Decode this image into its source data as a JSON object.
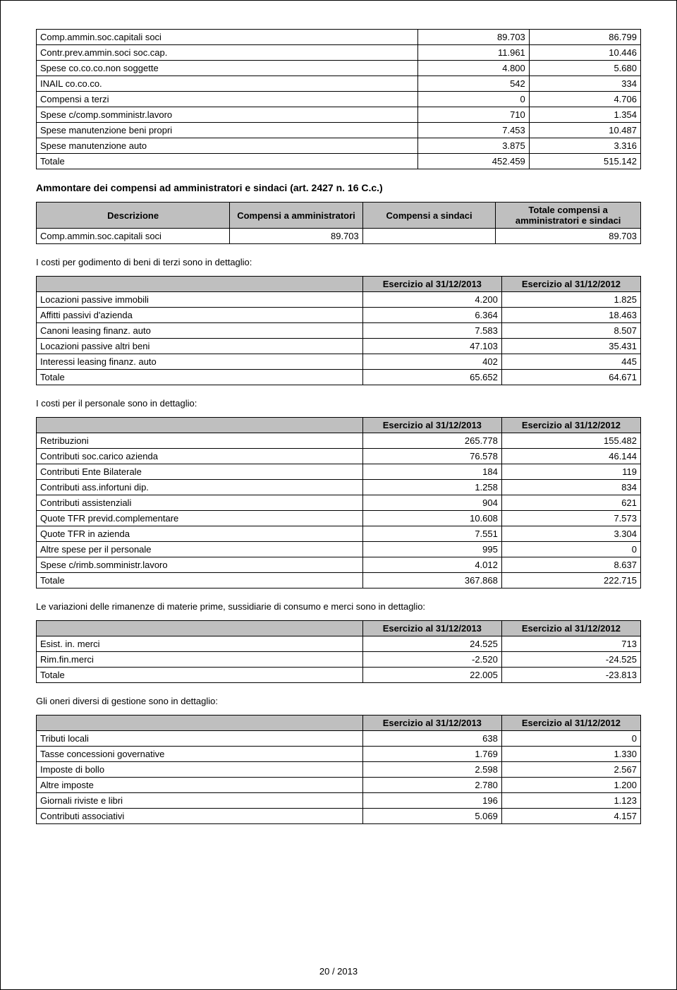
{
  "table1": {
    "rows": [
      {
        "label": "Comp.ammin.soc.capitali soci",
        "c1": "89.703",
        "c2": "86.799"
      },
      {
        "label": "Contr.prev.ammin.soci soc.cap.",
        "c1": "11.961",
        "c2": "10.446"
      },
      {
        "label": "Spese co.co.co.non soggette",
        "c1": "4.800",
        "c2": "5.680"
      },
      {
        "label": "INAIL co.co.co.",
        "c1": "542",
        "c2": "334"
      },
      {
        "label": "Compensi a terzi",
        "c1": "0",
        "c2": "4.706"
      },
      {
        "label": "Spese c/comp.somministr.lavoro",
        "c1": "710",
        "c2": "1.354"
      },
      {
        "label": "Spese manutenzione beni propri",
        "c1": "7.453",
        "c2": "10.487"
      },
      {
        "label": "Spese manutenzione auto",
        "c1": "3.875",
        "c2": "3.316"
      },
      {
        "label": "Totale",
        "c1": "452.459",
        "c2": "515.142"
      }
    ]
  },
  "heading1": "Ammontare dei compensi ad amministratori e sindaci (art. 2427 n. 16 C.c.)",
  "table2": {
    "headers": {
      "h1": "Descrizione",
      "h2": "Compensi a amministratori",
      "h3": "Compensi a sindaci",
      "h4": "Totale compensi a amministratori e sindaci"
    },
    "row": {
      "label": "Comp.ammin.soc.capitali soci",
      "c1": "89.703",
      "c2": "",
      "c3": "89.703"
    }
  },
  "subtext1": "I costi per godimento di beni di terzi sono in dettaglio:",
  "table3": {
    "headers": {
      "h1": "",
      "h2": "Esercizio al 31/12/2013",
      "h3": "Esercizio al 31/12/2012"
    },
    "rows": [
      {
        "label": "Locazioni passive immobili",
        "c1": "4.200",
        "c2": "1.825"
      },
      {
        "label": "Affitti passivi d'azienda",
        "c1": "6.364",
        "c2": "18.463"
      },
      {
        "label": "Canoni leasing finanz. auto",
        "c1": "7.583",
        "c2": "8.507"
      },
      {
        "label": "Locazioni passive altri beni",
        "c1": "47.103",
        "c2": "35.431"
      },
      {
        "label": "Interessi leasing finanz. auto",
        "c1": "402",
        "c2": "445"
      },
      {
        "label": "Totale",
        "c1": "65.652",
        "c2": "64.671"
      }
    ]
  },
  "subtext2": "I costi per il personale sono in dettaglio:",
  "table4": {
    "headers": {
      "h1": "",
      "h2": "Esercizio al 31/12/2013",
      "h3": "Esercizio al 31/12/2012"
    },
    "rows": [
      {
        "label": "Retribuzioni",
        "c1": "265.778",
        "c2": "155.482"
      },
      {
        "label": "Contributi soc.carico azienda",
        "c1": "76.578",
        "c2": "46.144"
      },
      {
        "label": "Contributi Ente Bilaterale",
        "c1": "184",
        "c2": "119"
      },
      {
        "label": "Contributi ass.infortuni dip.",
        "c1": "1.258",
        "c2": "834"
      },
      {
        "label": "Contributi assistenziali",
        "c1": "904",
        "c2": "621"
      },
      {
        "label": "Quote TFR previd.complementare",
        "c1": "10.608",
        "c2": "7.573"
      },
      {
        "label": "Quote TFR in azienda",
        "c1": "7.551",
        "c2": "3.304"
      },
      {
        "label": "Altre spese per il personale",
        "c1": "995",
        "c2": "0"
      },
      {
        "label": "Spese c/rimb.somministr.lavoro",
        "c1": "4.012",
        "c2": "8.637"
      },
      {
        "label": "Totale",
        "c1": "367.868",
        "c2": "222.715"
      }
    ]
  },
  "subtext3": "Le variazioni delle rimanenze di materie prime, sussidiarie di consumo e merci sono in dettaglio:",
  "table5": {
    "headers": {
      "h1": "",
      "h2": "Esercizio al 31/12/2013",
      "h3": "Esercizio al 31/12/2012"
    },
    "rows": [
      {
        "label": "Esist. in. merci",
        "c1": "24.525",
        "c2": "713"
      },
      {
        "label": "Rim.fin.merci",
        "c1": "-2.520",
        "c2": "-24.525"
      },
      {
        "label": "Totale",
        "c1": "22.005",
        "c2": "-23.813"
      }
    ]
  },
  "subtext4": "Gli oneri diversi di gestione sono in dettaglio:",
  "table6": {
    "headers": {
      "h1": "",
      "h2": "Esercizio al 31/12/2013",
      "h3": "Esercizio al 31/12/2012"
    },
    "rows": [
      {
        "label": "Tributi locali",
        "c1": "638",
        "c2": "0"
      },
      {
        "label": "Tasse concessioni governative",
        "c1": "1.769",
        "c2": "1.330"
      },
      {
        "label": "Imposte di bollo",
        "c1": "2.598",
        "c2": "2.567"
      },
      {
        "label": "Altre imposte",
        "c1": "2.780",
        "c2": "1.200"
      },
      {
        "label": "Giornali riviste e libri",
        "c1": "196",
        "c2": "1.123"
      },
      {
        "label": "Contributi associativi",
        "c1": "5.069",
        "c2": "4.157"
      }
    ]
  },
  "footer": "20 / 2013",
  "colwidths": {
    "c1": "54%",
    "c2": "23%",
    "c3": "23%"
  },
  "t2widths": {
    "c1": "32%",
    "c2": "22%",
    "c3": "22%",
    "c4": "24%"
  }
}
